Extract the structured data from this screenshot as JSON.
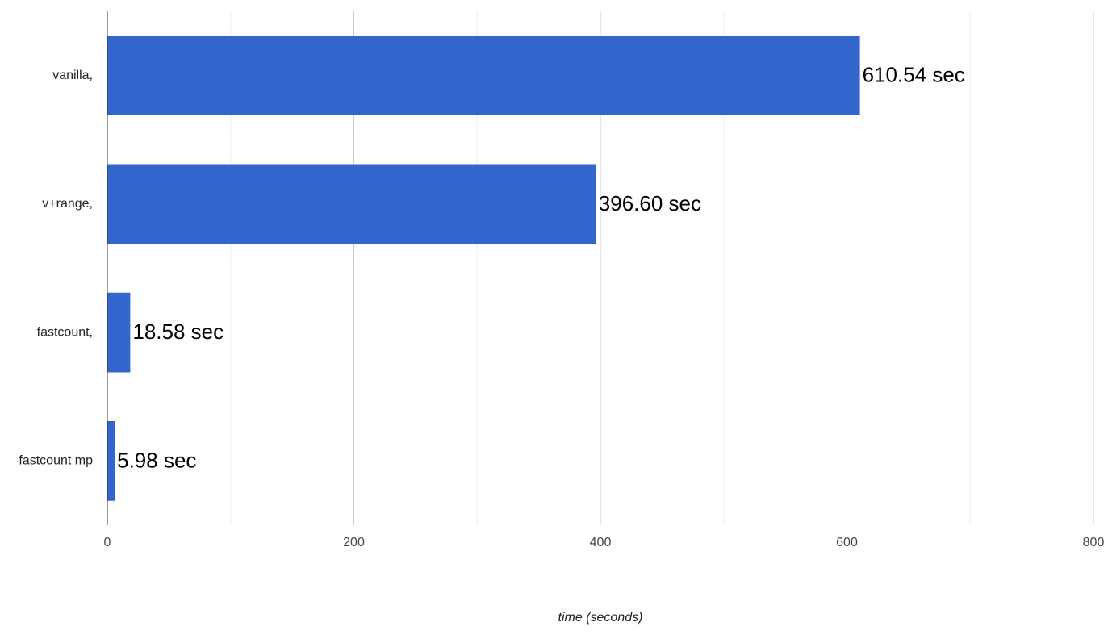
{
  "chart_data": {
    "type": "barh",
    "categories": [
      "vanilla,",
      "v+range,",
      "fastcount,",
      "fastcount mp"
    ],
    "values": [
      610.54,
      396.6,
      18.58,
      5.98
    ],
    "value_labels": [
      "610.54 sec",
      "396.60 sec",
      "18.58 sec",
      "5.98 sec"
    ],
    "color": "#3366cc",
    "xlabel": "time (seconds)",
    "xlim": [
      0,
      800
    ],
    "xticks": [
      0,
      200,
      400,
      600,
      800
    ],
    "xminor_ticks": [
      100,
      300,
      500,
      700
    ],
    "grid": true
  }
}
